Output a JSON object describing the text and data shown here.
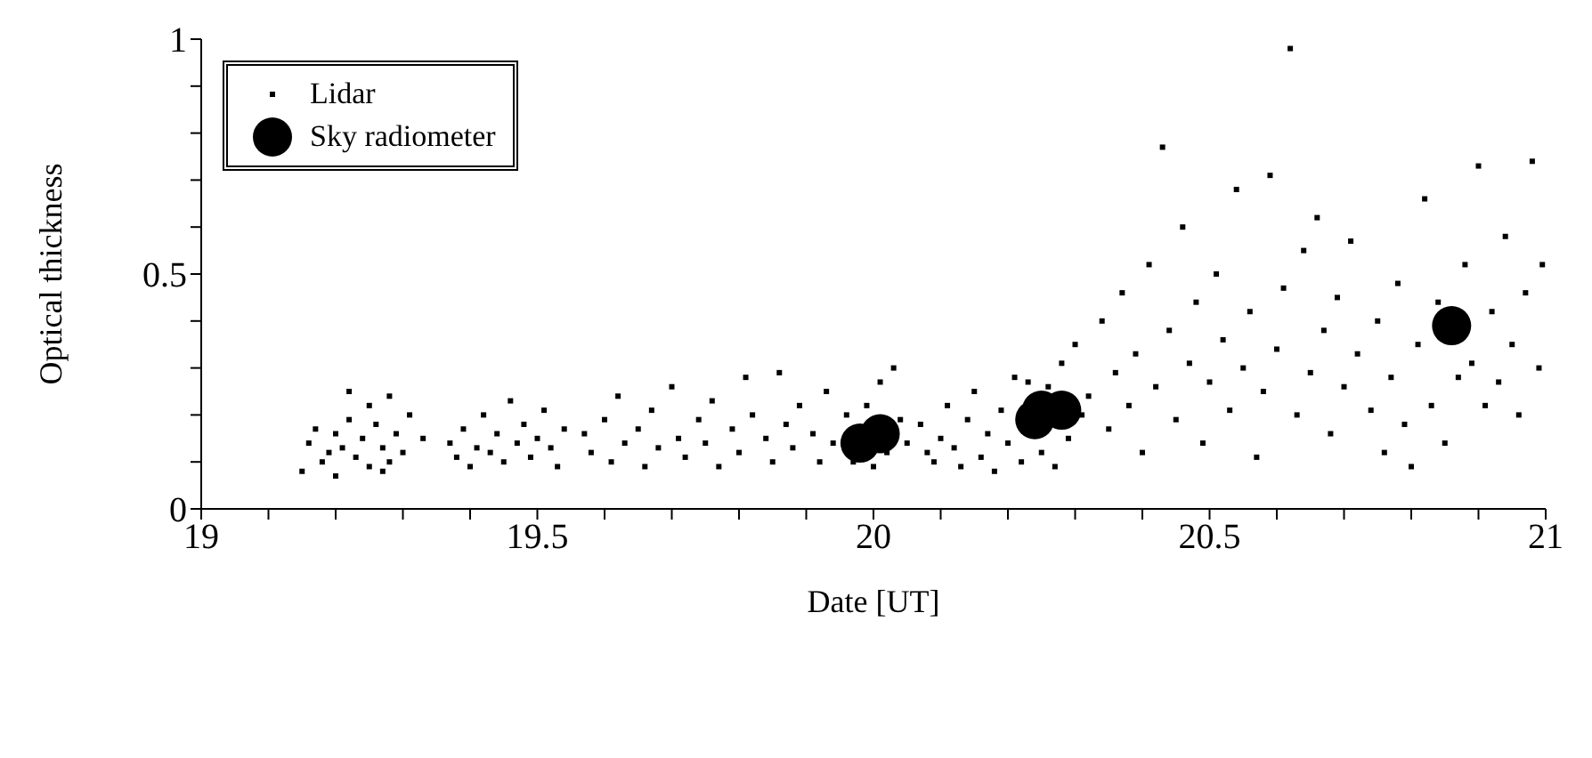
{
  "chart_data": {
    "type": "scatter",
    "xlabel": "Date [UT]",
    "ylabel": "Optical thickness",
    "xlim": [
      19,
      21
    ],
    "ylim": [
      0,
      1
    ],
    "xticks": [
      19,
      {
        "value": 19.1,
        "label": null
      },
      {
        "value": 19.2,
        "label": null
      },
      {
        "value": 19.3,
        "label": null
      },
      {
        "value": 19.4,
        "label": null
      },
      19.5,
      {
        "value": 19.6,
        "label": null
      },
      {
        "value": 19.7,
        "label": null
      },
      {
        "value": 19.8,
        "label": null
      },
      {
        "value": 19.9,
        "label": null
      },
      20,
      {
        "value": 20.1,
        "label": null
      },
      {
        "value": 20.2,
        "label": null
      },
      {
        "value": 20.3,
        "label": null
      },
      {
        "value": 20.4,
        "label": null
      },
      20.5,
      {
        "value": 20.6,
        "label": null
      },
      {
        "value": 20.7,
        "label": null
      },
      {
        "value": 20.8,
        "label": null
      },
      {
        "value": 20.9,
        "label": null
      },
      21
    ],
    "yticks": [
      0,
      {
        "value": 0.1,
        "label": null
      },
      {
        "value": 0.2,
        "label": null
      },
      {
        "value": 0.3,
        "label": null
      },
      {
        "value": 0.4,
        "label": null
      },
      0.5,
      {
        "value": 0.6,
        "label": null
      },
      {
        "value": 0.7,
        "label": null
      },
      {
        "value": 0.8,
        "label": null
      },
      {
        "value": 0.9,
        "label": null
      },
      1
    ],
    "grid": false,
    "legend": "top left",
    "series": [
      {
        "name": "Lidar",
        "color": "#000000",
        "marker": "square",
        "x": [
          19.15,
          19.16,
          19.17,
          19.18,
          19.19,
          19.2,
          19.2,
          19.21,
          19.22,
          19.23,
          19.24,
          19.25,
          19.25,
          19.26,
          19.27,
          19.28,
          19.28,
          19.29,
          19.3,
          19.31,
          19.27,
          19.22,
          19.33,
          19.37,
          19.38,
          19.39,
          19.4,
          19.41,
          19.42,
          19.43,
          19.44,
          19.45,
          19.46,
          19.47,
          19.48,
          19.49,
          19.5,
          19.51,
          19.52,
          19.53,
          19.54,
          19.57,
          19.58,
          19.6,
          19.61,
          19.62,
          19.63,
          19.65,
          19.66,
          19.67,
          19.68,
          19.7,
          19.71,
          19.72,
          19.74,
          19.75,
          19.76,
          19.77,
          19.79,
          19.8,
          19.81,
          19.82,
          19.84,
          19.85,
          19.86,
          19.87,
          19.88,
          19.89,
          19.91,
          19.92,
          19.93,
          19.94,
          19.96,
          19.97,
          19.99,
          20.0,
          20.01,
          20.02,
          20.03,
          20.04,
          20.05,
          20.07,
          20.08,
          20.09,
          20.1,
          20.11,
          20.12,
          20.13,
          20.14,
          20.15,
          20.16,
          20.17,
          20.18,
          20.19,
          20.2,
          20.21,
          20.22,
          20.23,
          20.25,
          20.26,
          20.27,
          20.28,
          20.29,
          20.3,
          20.31,
          20.32,
          20.34,
          20.35,
          20.36,
          20.37,
          20.38,
          20.39,
          20.4,
          20.41,
          20.42,
          20.43,
          20.44,
          20.45,
          20.46,
          20.47,
          20.48,
          20.49,
          20.5,
          20.51,
          20.52,
          20.53,
          20.54,
          20.55,
          20.56,
          20.57,
          20.58,
          20.59,
          20.6,
          20.61,
          20.62,
          20.63,
          20.64,
          20.65,
          20.66,
          20.67,
          20.68,
          20.69,
          20.7,
          20.71,
          20.72,
          20.74,
          20.75,
          20.76,
          20.77,
          20.78,
          20.79,
          20.8,
          20.81,
          20.82,
          20.83,
          20.84,
          20.85,
          20.87,
          20.88,
          20.89,
          20.9,
          20.91,
          20.92,
          20.93,
          20.94,
          20.95,
          20.96,
          20.97,
          20.98,
          20.99,
          20.995
        ],
        "values": [
          0.08,
          0.14,
          0.17,
          0.1,
          0.12,
          0.16,
          0.07,
          0.13,
          0.19,
          0.11,
          0.15,
          0.22,
          0.09,
          0.18,
          0.13,
          0.24,
          0.1,
          0.16,
          0.12,
          0.2,
          0.08,
          0.25,
          0.15,
          0.14,
          0.11,
          0.17,
          0.09,
          0.13,
          0.2,
          0.12,
          0.16,
          0.1,
          0.23,
          0.14,
          0.18,
          0.11,
          0.15,
          0.21,
          0.13,
          0.09,
          0.17,
          0.16,
          0.12,
          0.19,
          0.1,
          0.24,
          0.14,
          0.17,
          0.09,
          0.21,
          0.13,
          0.26,
          0.15,
          0.11,
          0.19,
          0.14,
          0.23,
          0.09,
          0.17,
          0.12,
          0.28,
          0.2,
          0.15,
          0.1,
          0.29,
          0.18,
          0.13,
          0.22,
          0.16,
          0.1,
          0.25,
          0.14,
          0.2,
          0.1,
          0.22,
          0.09,
          0.27,
          0.12,
          0.3,
          0.19,
          0.14,
          0.18,
          0.12,
          0.1,
          0.15,
          0.22,
          0.13,
          0.09,
          0.19,
          0.25,
          0.11,
          0.16,
          0.08,
          0.21,
          0.14,
          0.28,
          0.1,
          0.27,
          0.12,
          0.26,
          0.09,
          0.31,
          0.15,
          0.35,
          0.2,
          0.24,
          0.4,
          0.17,
          0.29,
          0.46,
          0.22,
          0.33,
          0.12,
          0.52,
          0.26,
          0.77,
          0.38,
          0.19,
          0.6,
          0.31,
          0.44,
          0.14,
          0.27,
          0.5,
          0.36,
          0.21,
          0.68,
          0.3,
          0.42,
          0.11,
          0.25,
          0.71,
          0.34,
          0.47,
          0.98,
          0.2,
          0.55,
          0.29,
          0.62,
          0.38,
          0.16,
          0.45,
          0.26,
          0.57,
          0.33,
          0.21,
          0.4,
          0.12,
          0.28,
          0.48,
          0.18,
          0.09,
          0.35,
          0.66,
          0.22,
          0.44,
          0.14,
          0.28,
          0.52,
          0.31,
          0.73,
          0.22,
          0.42,
          0.27,
          0.58,
          0.35,
          0.2,
          0.46,
          0.74,
          0.3,
          0.52
        ]
      },
      {
        "name": "Sky radiometer",
        "color": "#000000",
        "marker": "circle",
        "x": [
          19.98,
          20.01,
          20.24,
          20.25,
          20.28,
          20.86
        ],
        "values": [
          0.14,
          0.16,
          0.19,
          0.21,
          0.21,
          0.39
        ]
      }
    ]
  }
}
